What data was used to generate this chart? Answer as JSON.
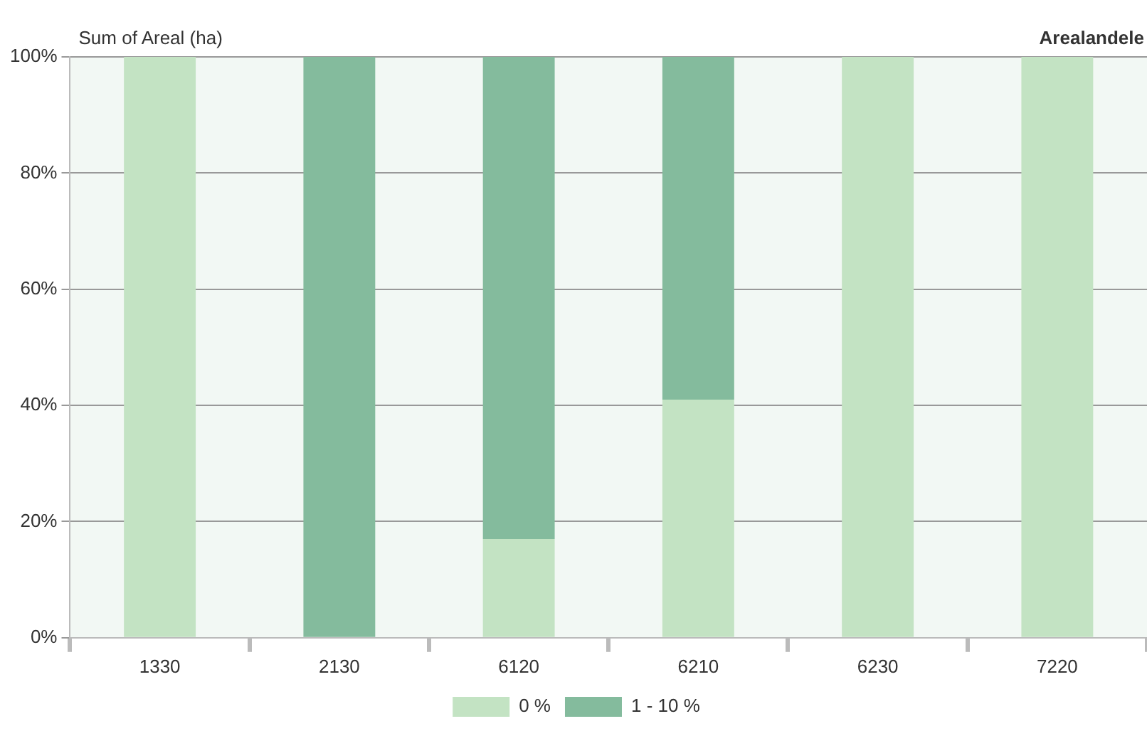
{
  "chart_data": {
    "type": "bar",
    "title": "Sum of Areal (ha)",
    "legend_title": "Arealandele",
    "categories": [
      "1330",
      "2130",
      "6120",
      "6210",
      "6230",
      "7220"
    ],
    "stacked": true,
    "series": [
      {
        "name": "0 %",
        "color": "#c3e3c3",
        "values": [
          100,
          0,
          17,
          41,
          100,
          100
        ]
      },
      {
        "name": "1 - 10 %",
        "color": "#84bb9d",
        "values": [
          0,
          100,
          83,
          59,
          0,
          0
        ]
      }
    ],
    "ylim": [
      0,
      100
    ],
    "yticks": [
      {
        "value": 0,
        "label": "0%"
      },
      {
        "value": 20,
        "label": "20%"
      },
      {
        "value": 40,
        "label": "40%"
      },
      {
        "value": 60,
        "label": "60%"
      },
      {
        "value": 80,
        "label": "80%"
      },
      {
        "value": 100,
        "label": "100%"
      }
    ],
    "grid": "y",
    "legend": "bottom"
  }
}
